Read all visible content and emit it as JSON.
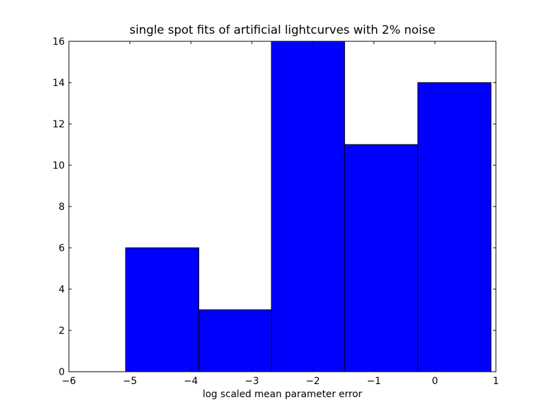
{
  "chart_data": {
    "type": "bar",
    "title": "single spot fits of artificial lightcurves with 2% noise",
    "xlabel": "log scaled mean parameter error",
    "ylabel": "",
    "xlim": [
      -6,
      1
    ],
    "ylim": [
      0,
      16
    ],
    "xticks": [
      -6,
      -5,
      -4,
      -3,
      -2,
      -1,
      0,
      1
    ],
    "xtick_labels": [
      "−6",
      "−5",
      "−4",
      "−3",
      "−2",
      "−1",
      "0",
      "1"
    ],
    "yticks": [
      0,
      2,
      4,
      6,
      8,
      10,
      12,
      14,
      16
    ],
    "ytick_labels": [
      "0",
      "2",
      "4",
      "6",
      "8",
      "10",
      "12",
      "14",
      "16"
    ],
    "bins": [
      {
        "x0": -5.07,
        "x1": -3.87,
        "value": 6
      },
      {
        "x0": -3.87,
        "x1": -2.68,
        "value": 3
      },
      {
        "x0": -2.68,
        "x1": -1.48,
        "value": 16
      },
      {
        "x0": -1.48,
        "x1": -0.28,
        "value": 11
      },
      {
        "x0": -0.28,
        "x1": 0.92,
        "value": 14
      }
    ],
    "bar_color": "#0000ff",
    "edge_color": "#000000",
    "grid": false,
    "legend": "none"
  }
}
